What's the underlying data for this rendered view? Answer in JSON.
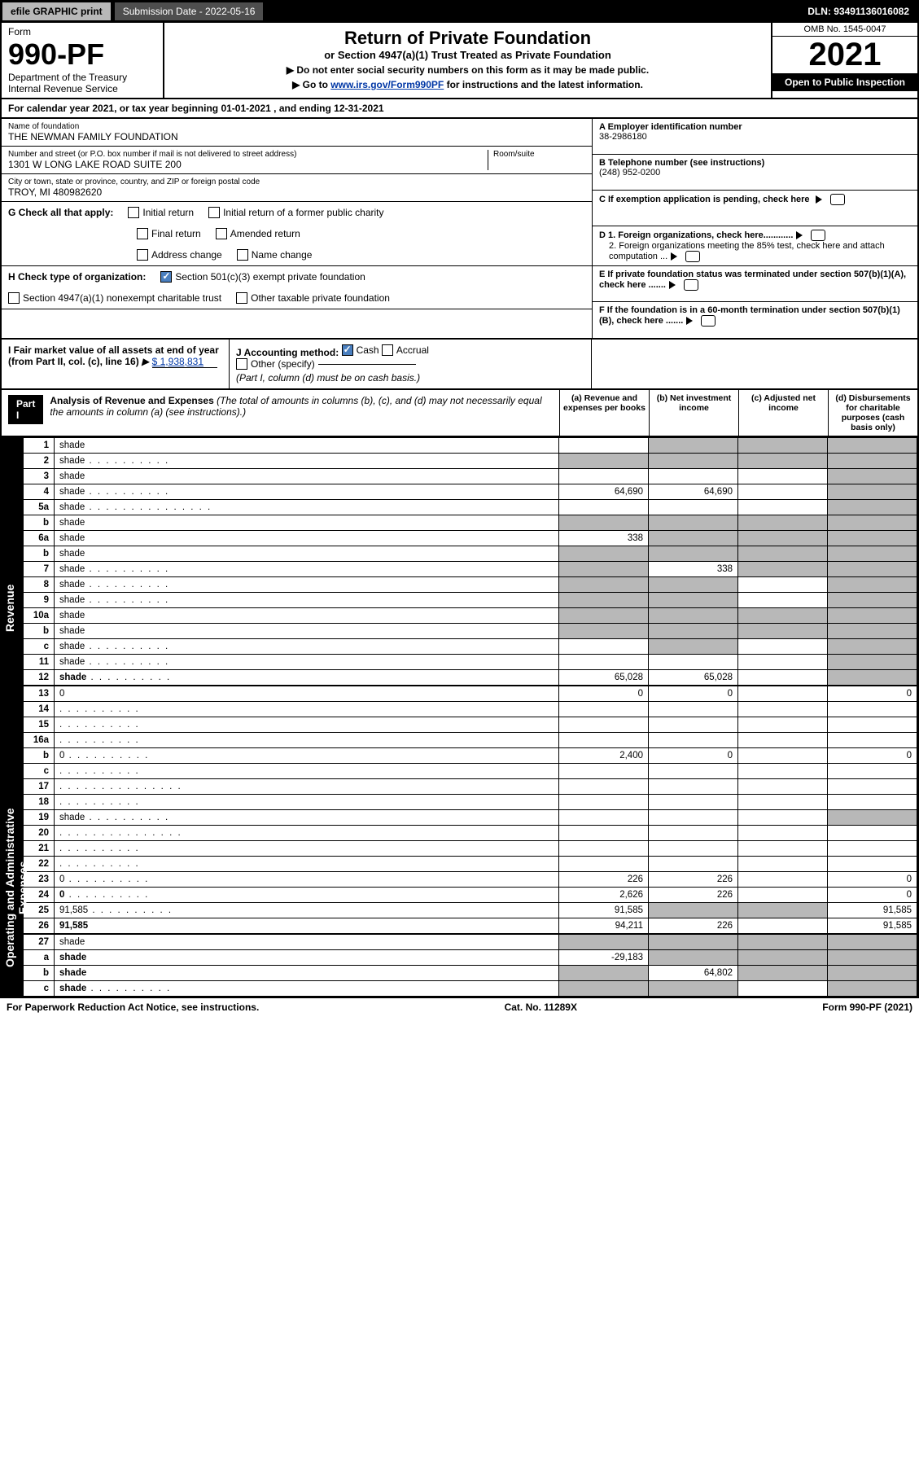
{
  "topbar": {
    "efile": "efile GRAPHIC print",
    "subdate_label": "Submission Date - 2022-05-16",
    "dln": "DLN: 93491136016082"
  },
  "header": {
    "form_label": "Form",
    "form_no": "990-PF",
    "dept": "Department of the Treasury",
    "irs": "Internal Revenue Service",
    "title": "Return of Private Foundation",
    "subtitle": "or Section 4947(a)(1) Trust Treated as Private Foundation",
    "note1": "▶ Do not enter social security numbers on this form as it may be made public.",
    "note2_pre": "▶ Go to ",
    "note2_link": "www.irs.gov/Form990PF",
    "note2_post": " for instructions and the latest information.",
    "omb": "OMB No. 1545-0047",
    "year": "2021",
    "open": "Open to Public Inspection"
  },
  "calrow": "For calendar year 2021, or tax year beginning 01-01-2021             , and ending 12-31-2021",
  "entity": {
    "name_lbl": "Name of foundation",
    "name": "THE NEWMAN FAMILY FOUNDATION",
    "addr_lbl": "Number and street (or P.O. box number if mail is not delivered to street address)",
    "addr": "1301 W LONG LAKE ROAD SUITE 200",
    "room_lbl": "Room/suite",
    "city_lbl": "City or town, state or province, country, and ZIP or foreign postal code",
    "city": "TROY, MI  480982620",
    "a_lbl": "A Employer identification number",
    "a_val": "38-2986180",
    "b_lbl": "B Telephone number (see instructions)",
    "b_val": "(248) 952-0200",
    "c_lbl": "C If exemption application is pending, check here",
    "d1_lbl": "D 1. Foreign organizations, check here............",
    "d2_lbl": "2. Foreign organizations meeting the 85% test, check here and attach computation ...",
    "e_lbl": "E  If private foundation status was terminated under section 507(b)(1)(A), check here .......",
    "f_lbl": "F  If the foundation is in a 60-month termination under section 507(b)(1)(B), check here .......",
    "g_lbl": "G Check all that apply:",
    "g_opts": [
      "Initial return",
      "Final return",
      "Address change",
      "Initial return of a former public charity",
      "Amended return",
      "Name change"
    ],
    "h_lbl": "H Check type of organization:",
    "h_opt1": "Section 501(c)(3) exempt private foundation",
    "h_opt2": "Section 4947(a)(1) nonexempt charitable trust",
    "h_opt3": "Other taxable private foundation",
    "i_lbl": "I Fair market value of all assets at end of year (from Part II, col. (c), line 16)",
    "i_val": "$  1,938,831",
    "j_lbl": "J Accounting method:",
    "j_cash": "Cash",
    "j_accr": "Accrual",
    "j_other": "Other (specify)",
    "j_note": "(Part I, column (d) must be on cash basis.)"
  },
  "part1": {
    "bar": "Part I",
    "title": "Analysis of Revenue and Expenses",
    "title_note": "(The total of amounts in columns (b), (c), and (d) may not necessarily equal the amounts in column (a) (see instructions).)",
    "col_a": "(a)   Revenue and expenses per books",
    "col_b": "(b)   Net investment income",
    "col_c": "(c)   Adjusted net income",
    "col_d": "(d)  Disbursements for charitable purposes (cash basis only)"
  },
  "sides": {
    "revenue": "Revenue",
    "expenses": "Operating and Administrative Expenses"
  },
  "rows": [
    {
      "n": "1",
      "d": "shade",
      "a": "",
      "b": "shade",
      "c": "shade"
    },
    {
      "n": "2",
      "d": "shade",
      "dots": true,
      "a": "shade",
      "b": "shade",
      "c": "shade"
    },
    {
      "n": "3",
      "d": "shade",
      "a": "",
      "b": "",
      "c": ""
    },
    {
      "n": "4",
      "d": "shade",
      "dots": true,
      "a": "64,690",
      "b": "64,690",
      "c": ""
    },
    {
      "n": "5a",
      "d": "shade",
      "dotsL": true,
      "a": "",
      "b": "",
      "c": ""
    },
    {
      "n": "b",
      "d": "shade",
      "a": "shade",
      "b": "shade",
      "c": "shade"
    },
    {
      "n": "6a",
      "d": "shade",
      "a": "338",
      "b": "shade",
      "c": "shade"
    },
    {
      "n": "b",
      "d": "shade",
      "a": "shade",
      "b": "shade",
      "c": "shade"
    },
    {
      "n": "7",
      "d": "shade",
      "dots": true,
      "a": "shade",
      "b": "338",
      "c": "shade"
    },
    {
      "n": "8",
      "d": "shade",
      "dots": true,
      "a": "shade",
      "b": "shade",
      "c": ""
    },
    {
      "n": "9",
      "d": "shade",
      "dots": true,
      "a": "shade",
      "b": "shade",
      "c": ""
    },
    {
      "n": "10a",
      "d": "shade",
      "a": "shade",
      "b": "shade",
      "c": "shade"
    },
    {
      "n": "b",
      "d": "shade",
      "a": "shade",
      "b": "shade",
      "c": "shade"
    },
    {
      "n": "c",
      "d": "shade",
      "dots": true,
      "a": "",
      "b": "shade",
      "c": ""
    },
    {
      "n": "11",
      "d": "shade",
      "dots": true,
      "a": "",
      "b": "",
      "c": ""
    },
    {
      "n": "12",
      "d": "shade",
      "dots": true,
      "bold": true,
      "a": "65,028",
      "b": "65,028",
      "c": ""
    },
    {
      "n": "13",
      "d": "0",
      "a": "0",
      "b": "0",
      "c": "",
      "top": true
    },
    {
      "n": "14",
      "d": "",
      "dots": true,
      "a": "",
      "b": "",
      "c": ""
    },
    {
      "n": "15",
      "d": "",
      "dots": true,
      "a": "",
      "b": "",
      "c": ""
    },
    {
      "n": "16a",
      "d": "",
      "dots": true,
      "a": "",
      "b": "",
      "c": ""
    },
    {
      "n": "b",
      "d": "0",
      "dots": true,
      "a": "2,400",
      "b": "0",
      "c": ""
    },
    {
      "n": "c",
      "d": "",
      "dots": true,
      "a": "",
      "b": "",
      "c": ""
    },
    {
      "n": "17",
      "d": "",
      "dotsL": true,
      "a": "",
      "b": "",
      "c": ""
    },
    {
      "n": "18",
      "d": "",
      "dots": true,
      "a": "",
      "b": "",
      "c": ""
    },
    {
      "n": "19",
      "d": "shade",
      "dots": true,
      "a": "",
      "b": "",
      "c": ""
    },
    {
      "n": "20",
      "d": "",
      "dotsL": true,
      "a": "",
      "b": "",
      "c": ""
    },
    {
      "n": "21",
      "d": "",
      "dots": true,
      "a": "",
      "b": "",
      "c": ""
    },
    {
      "n": "22",
      "d": "",
      "dots": true,
      "a": "",
      "b": "",
      "c": ""
    },
    {
      "n": "23",
      "d": "0",
      "dots": true,
      "a": "226",
      "b": "226",
      "c": ""
    },
    {
      "n": "24",
      "d": "0",
      "dots": true,
      "bold": true,
      "a": "2,626",
      "b": "226",
      "c": ""
    },
    {
      "n": "25",
      "d": "91,585",
      "dots": true,
      "a": "91,585",
      "b": "shade",
      "c": "shade"
    },
    {
      "n": "26",
      "d": "91,585",
      "bold": true,
      "a": "94,211",
      "b": "226",
      "c": ""
    },
    {
      "n": "27",
      "d": "shade",
      "a": "shade",
      "b": "shade",
      "c": "shade",
      "top": true
    },
    {
      "n": "a",
      "d": "shade",
      "bold": true,
      "a": "-29,183",
      "b": "shade",
      "c": "shade"
    },
    {
      "n": "b",
      "d": "shade",
      "bold": true,
      "a": "shade",
      "b": "64,802",
      "c": "shade"
    },
    {
      "n": "c",
      "d": "shade",
      "dots": true,
      "bold": true,
      "a": "shade",
      "b": "shade",
      "c": ""
    }
  ],
  "footer": {
    "pra": "For Paperwork Reduction Act Notice, see instructions.",
    "cat": "Cat. No. 11289X",
    "form": "Form 990-PF (2021)"
  }
}
